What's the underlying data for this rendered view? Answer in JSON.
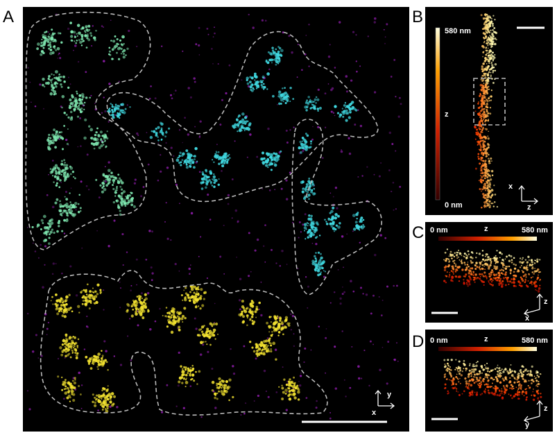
{
  "panels": [
    {
      "label": "A",
      "axes": {
        "vertical": "y",
        "horizontal": "x"
      }
    },
    {
      "label": "B",
      "colorbar": {
        "max": "580 nm",
        "min": "0 nm",
        "axis": "z"
      },
      "axes": {
        "vertical": "x",
        "horizontal": "z"
      }
    },
    {
      "label": "C",
      "colorbar": {
        "min": "0 nm",
        "axis": "z",
        "max": "580 nm"
      },
      "axes": {
        "vertical": "z",
        "horizontal": "x"
      }
    },
    {
      "label": "D",
      "colorbar": {
        "min": "0 nm",
        "axis": "z",
        "max": "580 nm"
      },
      "axes": {
        "vertical": "z",
        "horizontal": "y"
      }
    }
  ]
}
